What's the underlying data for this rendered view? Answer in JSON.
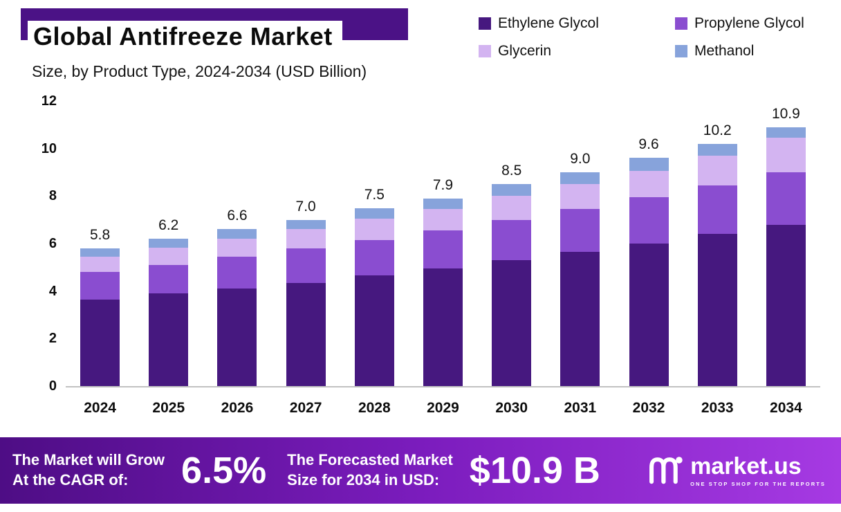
{
  "header": {
    "title": "Global Antifreeze Market",
    "subtitle": "Size, by Product Type, 2024-2034 (USD Billion)"
  },
  "legend": [
    {
      "label": "Ethylene Glycol",
      "color": "#46187f"
    },
    {
      "label": "Propylene Glycol",
      "color": "#8a4dd0"
    },
    {
      "label": "Glycerin",
      "color": "#d3b4f1"
    },
    {
      "label": "Methanol",
      "color": "#87a3db"
    }
  ],
  "chart_data": {
    "type": "bar",
    "stacked": true,
    "title": "Global Antifreeze Market Size, by Product Type, 2024-2034 (USD Billion)",
    "categories": [
      "2024",
      "2025",
      "2026",
      "2027",
      "2028",
      "2029",
      "2030",
      "2031",
      "2032",
      "2033",
      "2034"
    ],
    "series": [
      {
        "name": "Ethylene Glycol",
        "color": "#46187f",
        "values": [
          3.65,
          3.9,
          4.1,
          4.35,
          4.65,
          4.95,
          5.3,
          5.65,
          6.0,
          6.4,
          6.8
        ]
      },
      {
        "name": "Propylene Glycol",
        "color": "#8a4dd0",
        "values": [
          1.15,
          1.2,
          1.35,
          1.45,
          1.5,
          1.6,
          1.7,
          1.8,
          1.95,
          2.05,
          2.2
        ]
      },
      {
        "name": "Glycerin",
        "color": "#d3b4f1",
        "values": [
          0.65,
          0.72,
          0.75,
          0.8,
          0.9,
          0.9,
          1.0,
          1.05,
          1.1,
          1.25,
          1.45
        ]
      },
      {
        "name": "Methanol",
        "color": "#87a3db",
        "values": [
          0.35,
          0.38,
          0.4,
          0.4,
          0.45,
          0.45,
          0.5,
          0.5,
          0.55,
          0.5,
          0.45
        ]
      }
    ],
    "totals": [
      5.8,
      6.2,
      6.6,
      7.0,
      7.5,
      7.9,
      8.5,
      9.0,
      9.6,
      10.2,
      10.9
    ],
    "total_labels": [
      "5.8",
      "6.2",
      "6.6",
      "7.0",
      "7.5",
      "7.9",
      "8.5",
      "9.0",
      "9.6",
      "10.2",
      "10.9"
    ],
    "xlabel": "",
    "ylabel": "",
    "ylim": [
      0,
      12
    ],
    "yticks": [
      0,
      2,
      4,
      6,
      8,
      10,
      12
    ],
    "grid": false,
    "legend_position": "top-right"
  },
  "footer": {
    "cagr_line1": "The Market will Grow",
    "cagr_line2": "At the CAGR of:",
    "cagr_value": "6.5%",
    "forecast_line1": "The Forecasted Market",
    "forecast_line2": "Size for 2034 in USD:",
    "forecast_value": "$10.9 B",
    "brand": "market.us",
    "brand_tagline": "ONE STOP SHOP FOR THE REPORTS"
  },
  "colors": {
    "title_accent": "#4b1286",
    "banner_gradient_start": "#4e0d85",
    "banner_gradient_end": "#a63ae3",
    "axis_line": "#c2c2c2"
  }
}
